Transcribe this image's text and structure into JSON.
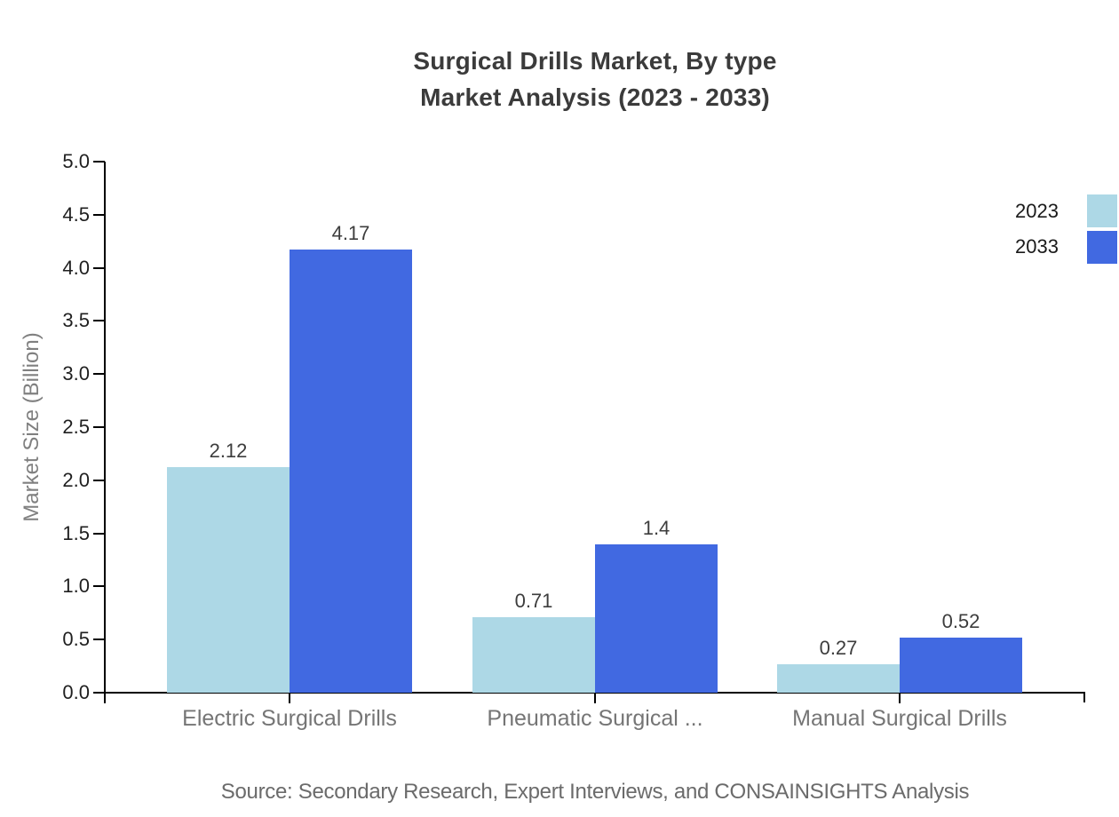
{
  "title": {
    "line1": "Surgical Drills Market, By type",
    "line2": "Market Analysis (2023 - 2033)"
  },
  "source": "Source: Secondary Research, Expert Interviews, and CONSAINSIGHTS Analysis",
  "colors": {
    "series_2023": "#ADD8E6",
    "series_2033": "#4169E1",
    "axis": "#000000",
    "title_text": "#3b3b3b",
    "category_text": "#757575",
    "source_text": "#6b6b6b"
  },
  "chart_data": {
    "type": "bar",
    "title": "Surgical Drills Market, By type — Market Analysis (2023 - 2033)",
    "categories": [
      "Electric Surgical Drills",
      "Pneumatic Surgical ...",
      "Manual Surgical Drills"
    ],
    "series": [
      {
        "name": "2023",
        "color": "#ADD8E6",
        "values": [
          2.12,
          0.71,
          0.27
        ]
      },
      {
        "name": "2033",
        "color": "#4169E1",
        "values": [
          4.17,
          1.4,
          0.52
        ]
      }
    ],
    "xlabel": "",
    "ylabel": "Market Size (Billion)",
    "ylim": [
      0,
      5
    ],
    "yticks": [
      0,
      0.5,
      1,
      1.5,
      2,
      2.5,
      3,
      3.5,
      4,
      4.5,
      5
    ],
    "grid": false,
    "legend_position": "top-right",
    "bar_value_labels": [
      "2.12",
      "4.17",
      "0.71",
      "1.4",
      "0.27",
      "0.52"
    ]
  }
}
